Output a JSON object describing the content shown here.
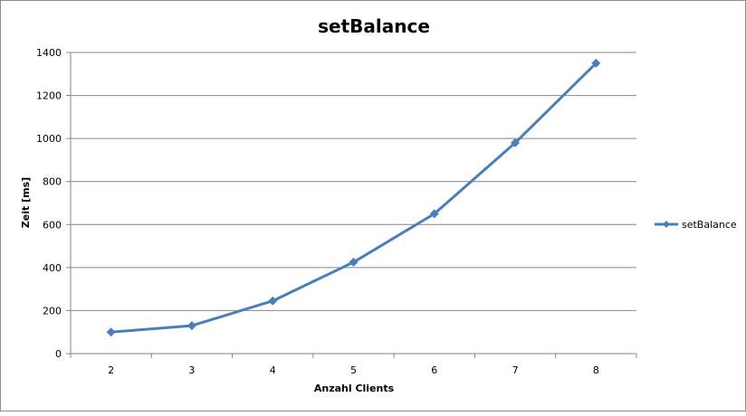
{
  "chart_data": {
    "type": "line",
    "title": "setBalance",
    "xlabel": "Anzahl Clients",
    "ylabel": "Zeit [ms]",
    "categories": [
      "2",
      "3",
      "4",
      "5",
      "6",
      "7",
      "8"
    ],
    "x": [
      2,
      3,
      4,
      5,
      6,
      7,
      8
    ],
    "series": [
      {
        "name": "setBalance",
        "color": "#4a7ebb",
        "values": [
          100,
          130,
          245,
          425,
          650,
          980,
          1350
        ]
      }
    ],
    "ylim": [
      0,
      1400
    ],
    "yticks": [
      "0",
      "200",
      "400",
      "600",
      "800",
      "1000",
      "1200",
      "1400"
    ],
    "grid": "horizontal",
    "legend_position": "right",
    "marker": "diamond"
  }
}
